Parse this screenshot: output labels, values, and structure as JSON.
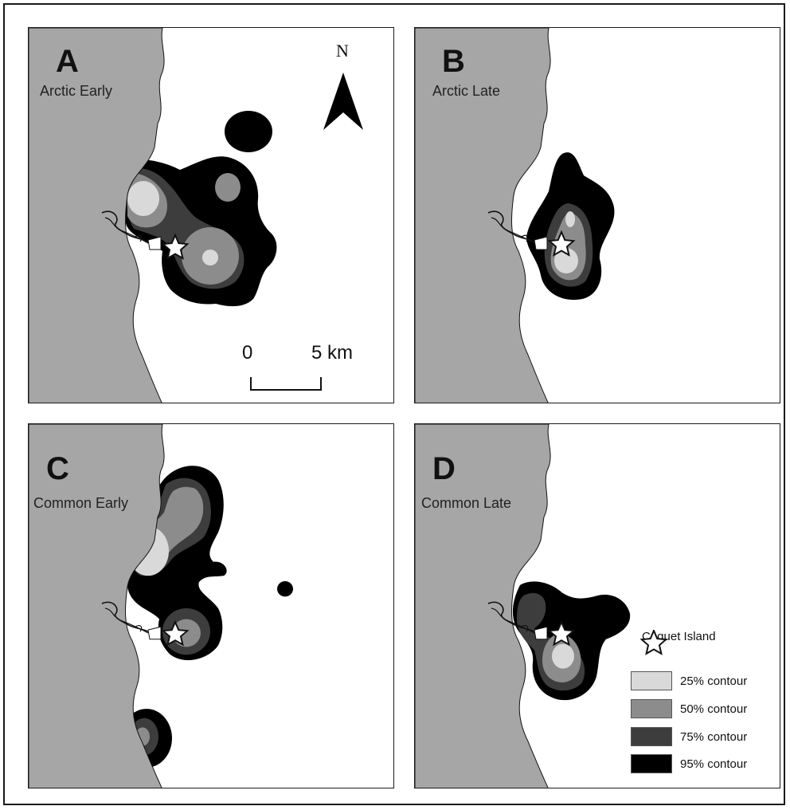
{
  "panels": [
    {
      "letter": "A",
      "label": "Arctic Early"
    },
    {
      "letter": "B",
      "label": "Arctic Late"
    },
    {
      "letter": "C",
      "label": "Common Early"
    },
    {
      "letter": "D",
      "label": "Common Late"
    }
  ],
  "north_arrow": {
    "label": "N"
  },
  "scale_bar": {
    "start_label": "0",
    "end_label": "5 km"
  },
  "legend": {
    "island_label": "Coquet Island",
    "contours": [
      {
        "label": "25% contour",
        "color": "#d9d9d9"
      },
      {
        "label": "50% contour",
        "color": "#8c8c8c"
      },
      {
        "label": "75% contour",
        "color": "#3d3d3d"
      },
      {
        "label": "95% contour",
        "color": "#000000"
      }
    ]
  },
  "colors": {
    "land": "#a6a6a6",
    "sea": "#ffffff",
    "c95": "#000000",
    "c75": "#3d3d3d",
    "c50": "#8c8c8c",
    "c25": "#d9d9d9"
  }
}
